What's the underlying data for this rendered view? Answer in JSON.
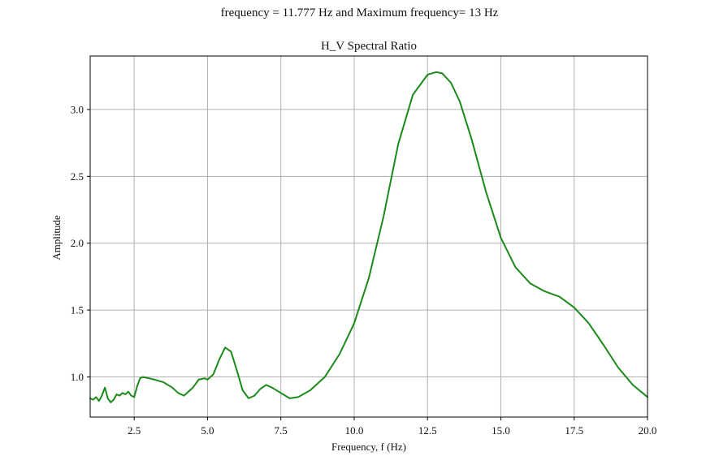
{
  "header": {
    "suptitle": "frequency = 11.777 Hz and Maximum frequency= 13 Hz"
  },
  "chart_data": {
    "type": "line",
    "title": "H_V Spectral Ratio",
    "xlabel": "Frequency, f (Hz)",
    "ylabel": "Amplitude",
    "xlim": [
      1.0,
      20.0
    ],
    "ylim": [
      0.7,
      3.4
    ],
    "xticks": [
      "2.5",
      "5.0",
      "7.5",
      "10.0",
      "12.5",
      "15.0",
      "17.5",
      "20.0"
    ],
    "yticks": [
      "1.0",
      "1.5",
      "2.0",
      "2.5",
      "3.0"
    ],
    "grid": true,
    "series": [
      {
        "color": "#1a8a1a",
        "x": [
          1.0,
          1.1,
          1.2,
          1.3,
          1.4,
          1.5,
          1.6,
          1.7,
          1.8,
          1.9,
          2.0,
          2.1,
          2.2,
          2.3,
          2.4,
          2.5,
          2.6,
          2.7,
          2.8,
          3.0,
          3.2,
          3.5,
          3.8,
          4.0,
          4.2,
          4.5,
          4.7,
          4.9,
          5.0,
          5.2,
          5.4,
          5.6,
          5.8,
          6.0,
          6.2,
          6.4,
          6.6,
          6.8,
          7.0,
          7.2,
          7.5,
          7.8,
          8.1,
          8.5,
          9.0,
          9.5,
          10.0,
          10.5,
          11.0,
          11.5,
          12.0,
          12.5,
          12.8,
          13.0,
          13.3,
          13.6,
          14.0,
          14.5,
          15.0,
          15.5,
          16.0,
          16.5,
          17.0,
          17.5,
          18.0,
          18.5,
          19.0,
          19.5,
          20.0
        ],
        "y": [
          0.84,
          0.83,
          0.85,
          0.82,
          0.86,
          0.92,
          0.84,
          0.81,
          0.83,
          0.87,
          0.86,
          0.88,
          0.87,
          0.89,
          0.86,
          0.85,
          0.93,
          0.99,
          1.0,
          0.99,
          0.98,
          0.96,
          0.92,
          0.88,
          0.86,
          0.92,
          0.98,
          0.99,
          0.98,
          1.02,
          1.13,
          1.22,
          1.19,
          1.05,
          0.9,
          0.84,
          0.86,
          0.91,
          0.94,
          0.92,
          0.88,
          0.84,
          0.85,
          0.9,
          1.0,
          1.17,
          1.4,
          1.74,
          2.2,
          2.74,
          3.11,
          3.26,
          3.28,
          3.27,
          3.2,
          3.06,
          2.78,
          2.38,
          2.04,
          1.82,
          1.7,
          1.64,
          1.6,
          1.52,
          1.4,
          1.24,
          1.07,
          0.94,
          0.85
        ]
      }
    ]
  }
}
